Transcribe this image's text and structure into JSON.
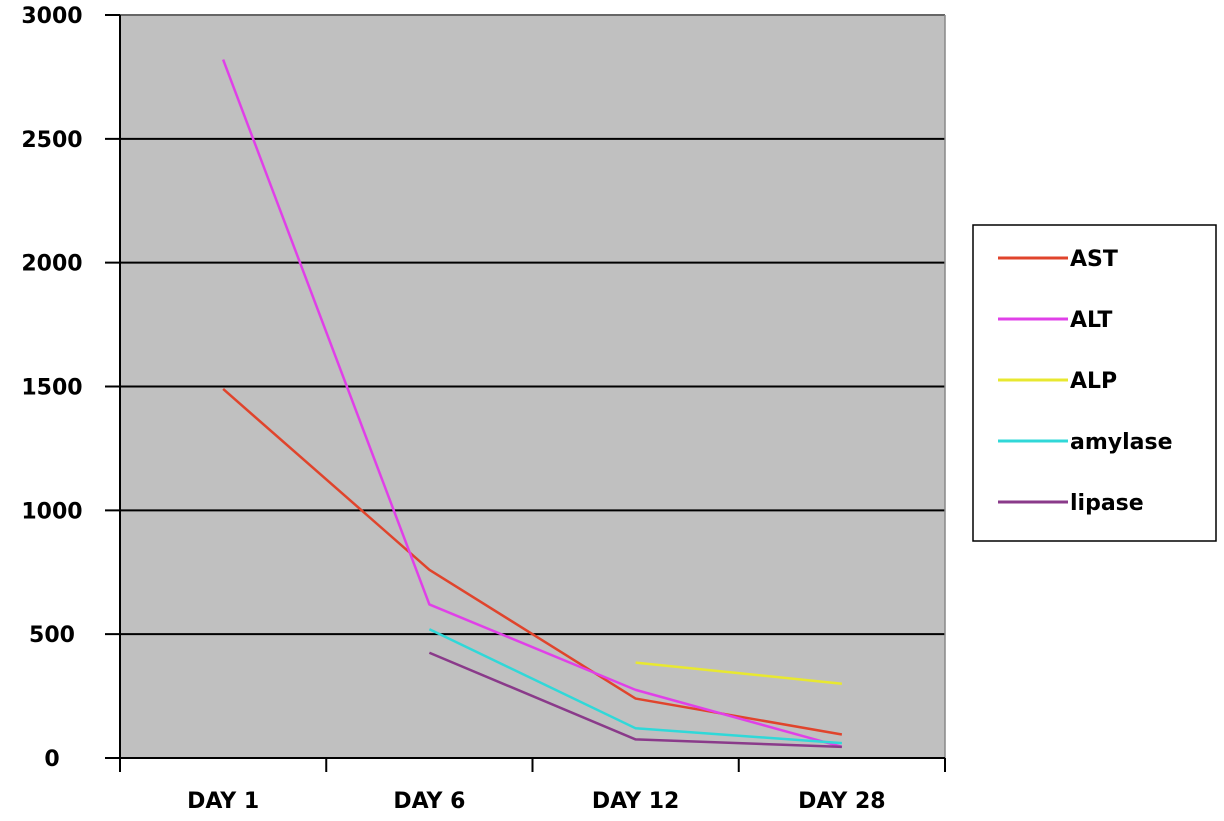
{
  "chart_data": {
    "type": "line",
    "categories": [
      "DAY 1",
      "DAY 6",
      "DAY 12",
      "DAY 28"
    ],
    "ylim": [
      0,
      3000
    ],
    "yticks": [
      0,
      500,
      1000,
      1500,
      2000,
      2500,
      3000
    ],
    "grid": true,
    "legend_position": "right",
    "plot_background": "#c0c0c0",
    "series": [
      {
        "name": "AST",
        "color": "#e0442c",
        "values": [
          1490,
          760,
          240,
          95
        ]
      },
      {
        "name": "ALT",
        "color": "#e040e8",
        "values": [
          2820,
          620,
          275,
          45
        ]
      },
      {
        "name": "ALP",
        "color": "#e8e830",
        "values": [
          null,
          null,
          385,
          300
        ]
      },
      {
        "name": "amylase",
        "color": "#30d8d8",
        "values": [
          null,
          520,
          120,
          60
        ]
      },
      {
        "name": "lipase",
        "color": "#8a3a8a",
        "values": [
          null,
          425,
          75,
          45
        ]
      }
    ]
  }
}
